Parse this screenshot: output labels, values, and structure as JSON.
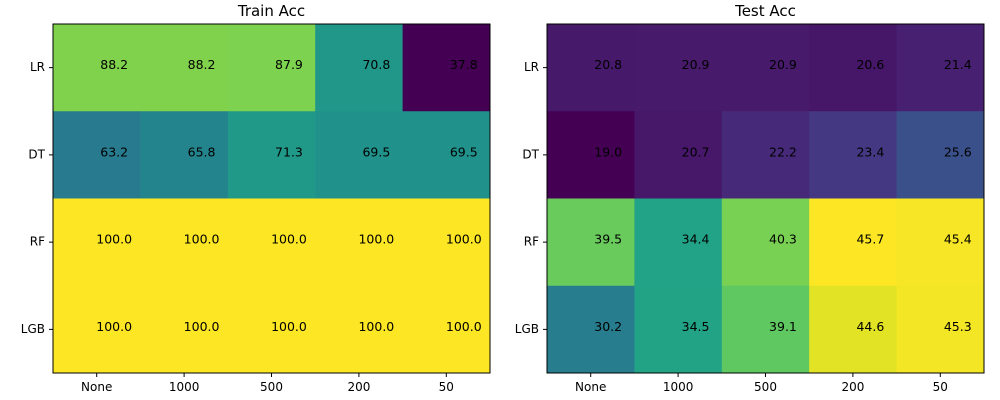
{
  "chart_data": [
    {
      "type": "heatmap",
      "title": "Train Acc",
      "x_categories": [
        "None",
        "1000",
        "500",
        "200",
        "50"
      ],
      "y_categories": [
        "LR",
        "DT",
        "RF",
        "LGB"
      ],
      "values": [
        [
          88.2,
          88.2,
          87.9,
          70.8,
          37.8
        ],
        [
          63.2,
          65.8,
          71.3,
          69.5,
          69.5
        ],
        [
          100.0,
          100.0,
          100.0,
          100.0,
          100.0
        ],
        [
          100.0,
          100.0,
          100.0,
          100.0,
          100.0
        ]
      ],
      "labels": [
        [
          "88.2",
          "88.2",
          "87.9",
          "70.8",
          "37.8"
        ],
        [
          "63.2",
          "65.8",
          "71.3",
          "69.5",
          "69.5"
        ],
        [
          "100.0",
          "100.0",
          "100.0",
          "100.0",
          "100.0"
        ],
        [
          "100.0",
          "100.0",
          "100.0",
          "100.0",
          "100.0"
        ]
      ],
      "colormap": "viridis",
      "color_range": [
        37.8,
        100.0
      ]
    },
    {
      "type": "heatmap",
      "title": "Test Acc",
      "x_categories": [
        "None",
        "1000",
        "500",
        "200",
        "50"
      ],
      "y_categories": [
        "LR",
        "DT",
        "RF",
        "LGB"
      ],
      "values": [
        [
          20.8,
          20.9,
          20.9,
          20.6,
          21.4
        ],
        [
          19.0,
          20.7,
          22.2,
          23.4,
          25.6
        ],
        [
          39.5,
          34.4,
          40.3,
          45.7,
          45.4
        ],
        [
          30.2,
          34.5,
          39.1,
          44.6,
          45.3
        ]
      ],
      "labels": [
        [
          "20.8",
          "20.9",
          "20.9",
          "20.6",
          "21.4"
        ],
        [
          "19.0",
          "20.7",
          "22.2",
          "23.4",
          "25.6"
        ],
        [
          "39.5",
          "34.4",
          "40.3",
          "45.7",
          "45.4"
        ],
        [
          "30.2",
          "34.5",
          "39.1",
          "44.6",
          "45.3"
        ]
      ],
      "colormap": "viridis",
      "color_range": [
        19.0,
        45.7
      ]
    }
  ]
}
